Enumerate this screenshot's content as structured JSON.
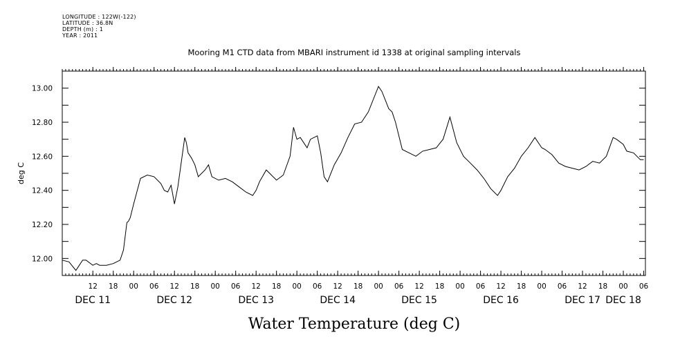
{
  "header": {
    "longitude": "LONGITUDE : 122W(-122)",
    "latitude": "LATITUDE : 36.8N",
    "depth": "DEPTH (m) : 1",
    "year": "YEAR : 2011"
  },
  "footer": {
    "title": "Water Temperature (deg C)"
  },
  "chart_data": {
    "type": "line",
    "title": "Mooring M1 CTD data from MBARI instrument id 1338 at original sampling intervals",
    "xlabel": "",
    "ylabel": "deg C",
    "ylim": [
      11.9,
      13.1
    ],
    "yticks": [
      12.0,
      12.2,
      12.4,
      12.6,
      12.8,
      13.0
    ],
    "ytick_labels": [
      "12.00",
      "12.20",
      "12.40",
      "12.60",
      "12.80",
      "13.00"
    ],
    "xlim": [
      "2011-12-11T03:00",
      "2011-12-18T06:30"
    ],
    "hour_ticks": [
      "12",
      "18",
      "00",
      "06",
      "12",
      "18",
      "00",
      "06",
      "12",
      "18",
      "00",
      "06",
      "12",
      "18",
      "00",
      "06",
      "12",
      "18",
      "00",
      "06",
      "12",
      "18",
      "00",
      "06",
      "12",
      "18",
      "00",
      "06"
    ],
    "day_labels": [
      {
        "text": "DEC 11",
        "at": "2011-12-11T12:00"
      },
      {
        "text": "DEC 12",
        "at": "2011-12-12T12:00"
      },
      {
        "text": "DEC 13",
        "at": "2011-12-13T12:00"
      },
      {
        "text": "DEC 14",
        "at": "2011-12-14T12:00"
      },
      {
        "text": "DEC 15",
        "at": "2011-12-15T12:00"
      },
      {
        "text": "DEC 16",
        "at": "2011-12-16T12:00"
      },
      {
        "text": "DEC 17",
        "at": "2011-12-17T12:00"
      },
      {
        "text": "DEC 18",
        "at": "2011-12-18T00:00"
      }
    ],
    "grid": false,
    "line_color": "#000000",
    "series": [
      {
        "x": [
          "2011-12-11T03:00",
          "2011-12-11T05:00",
          "2011-12-11T07:00",
          "2011-12-11T08:00",
          "2011-12-11T09:00",
          "2011-12-11T10:00",
          "2011-12-11T12:00",
          "2011-12-11T13:00",
          "2011-12-11T14:00",
          "2011-12-11T16:00",
          "2011-12-11T18:00",
          "2011-12-11T20:00",
          "2011-12-11T21:00",
          "2011-12-11T22:00",
          "2011-12-11T22:30",
          "2011-12-11T23:00",
          "2011-12-12T00:00",
          "2011-12-12T02:00",
          "2011-12-12T04:00",
          "2011-12-12T06:00",
          "2011-12-12T08:00",
          "2011-12-12T09:00",
          "2011-12-12T10:00",
          "2011-12-12T11:00",
          "2011-12-12T12:00",
          "2011-12-12T13:00",
          "2011-12-12T15:00",
          "2011-12-12T15:30",
          "2011-12-12T16:00",
          "2011-12-12T17:00",
          "2011-12-12T18:00",
          "2011-12-12T19:00",
          "2011-12-12T21:00",
          "2011-12-12T22:00",
          "2011-12-12T23:00",
          "2011-12-13T01:00",
          "2011-12-13T03:00",
          "2011-12-13T05:00",
          "2011-12-13T07:00",
          "2011-12-13T09:00",
          "2011-12-13T11:00",
          "2011-12-13T12:00",
          "2011-12-13T13:00",
          "2011-12-13T15:00",
          "2011-12-13T16:00",
          "2011-12-13T18:00",
          "2011-12-13T20:00",
          "2011-12-13T22:00",
          "2011-12-13T23:00",
          "2011-12-14T00:00",
          "2011-12-14T01:00",
          "2011-12-14T03:00",
          "2011-12-14T04:00",
          "2011-12-14T06:00",
          "2011-12-14T07:00",
          "2011-12-14T08:00",
          "2011-12-14T09:00",
          "2011-12-14T11:00",
          "2011-12-14T13:00",
          "2011-12-14T15:00",
          "2011-12-14T17:00",
          "2011-12-14T19:00",
          "2011-12-14T21:00",
          "2011-12-14T23:00",
          "2011-12-15T00:00",
          "2011-12-15T01:00",
          "2011-12-15T02:00",
          "2011-12-15T03:00",
          "2011-12-15T04:00",
          "2011-12-15T05:00",
          "2011-12-15T07:00",
          "2011-12-15T09:00",
          "2011-12-15T11:00",
          "2011-12-15T13:00",
          "2011-12-15T15:00",
          "2011-12-15T17:00",
          "2011-12-15T19:00",
          "2011-12-15T21:00",
          "2011-12-15T23:00",
          "2011-12-16T01:00",
          "2011-12-16T03:00",
          "2011-12-16T05:00",
          "2011-12-16T07:00",
          "2011-12-16T09:00",
          "2011-12-16T11:00",
          "2011-12-16T12:00",
          "2011-12-16T14:00",
          "2011-12-16T16:00",
          "2011-12-16T18:00",
          "2011-12-16T20:00",
          "2011-12-16T22:00",
          "2011-12-17T00:00",
          "2011-12-17T01:00",
          "2011-12-17T03:00",
          "2011-12-17T05:00",
          "2011-12-17T07:00",
          "2011-12-17T09:00",
          "2011-12-17T11:00",
          "2011-12-17T13:00",
          "2011-12-17T15:00",
          "2011-12-17T17:00",
          "2011-12-17T19:00",
          "2011-12-17T21:00",
          "2011-12-17T22:00",
          "2011-12-18T00:00",
          "2011-12-18T01:00",
          "2011-12-18T03:00",
          "2011-12-18T05:00",
          "2011-12-18T06:00"
        ],
        "y": [
          11.99,
          11.98,
          11.93,
          11.96,
          11.99,
          11.99,
          11.96,
          11.97,
          11.96,
          11.96,
          11.97,
          11.99,
          12.05,
          12.21,
          12.22,
          12.24,
          12.32,
          12.47,
          12.49,
          12.48,
          12.44,
          12.4,
          12.39,
          12.43,
          12.32,
          12.42,
          12.71,
          12.68,
          12.62,
          12.59,
          12.55,
          12.48,
          12.52,
          12.55,
          12.48,
          12.46,
          12.47,
          12.45,
          12.42,
          12.39,
          12.37,
          12.4,
          12.45,
          12.52,
          12.5,
          12.46,
          12.49,
          12.6,
          12.77,
          12.7,
          12.71,
          12.65,
          12.7,
          12.72,
          12.62,
          12.48,
          12.45,
          12.55,
          12.62,
          12.71,
          12.79,
          12.8,
          12.86,
          12.96,
          13.01,
          12.98,
          12.93,
          12.88,
          12.86,
          12.8,
          12.64,
          12.62,
          12.6,
          12.63,
          12.64,
          12.65,
          12.7,
          12.83,
          12.68,
          12.6,
          12.56,
          12.52,
          12.47,
          12.41,
          12.37,
          12.4,
          12.48,
          12.53,
          12.6,
          12.65,
          12.71,
          12.65,
          12.64,
          12.61,
          12.56,
          12.54,
          12.53,
          12.52,
          12.54,
          12.57,
          12.56,
          12.6,
          12.71,
          12.7,
          12.67,
          12.63,
          12.62,
          12.58,
          12.58
        ]
      }
    ]
  }
}
